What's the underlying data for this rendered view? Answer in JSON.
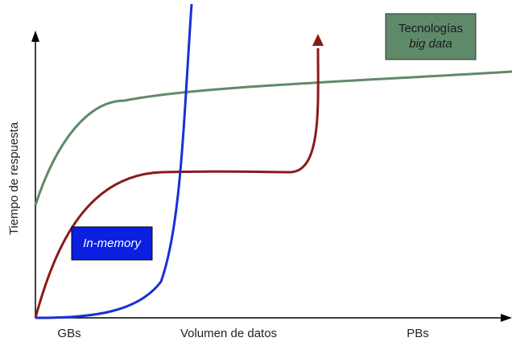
{
  "axes": {
    "y_label": "Tiempo de respuesta",
    "x_label": "Volumen de datos",
    "x_tick_start": "GBs",
    "x_tick_end": "PBs"
  },
  "legend_boxes": {
    "big_data": {
      "line1": "Tecnologías",
      "line2": "big data",
      "fill": "#5f8a6a",
      "text_color": "#1a1a1a"
    },
    "in_memory": {
      "label": "In-memory",
      "fill": "#0b1fe0",
      "text_color": "#ffffff"
    }
  },
  "curves": {
    "big_data": {
      "color": "#5f8a6a"
    },
    "traditional": {
      "color": "#8b1a1a"
    },
    "in_memory": {
      "color": "#1a2fd6"
    }
  }
}
